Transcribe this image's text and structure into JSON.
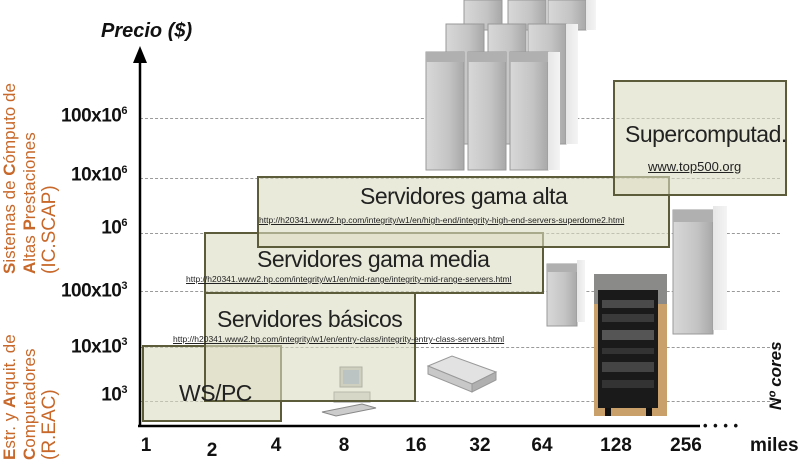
{
  "y_axis": {
    "title": "Precio ($)",
    "ticks": [
      {
        "base": "10",
        "exp": "3"
      },
      {
        "base": "10x10",
        "exp": "3"
      },
      {
        "base": "100x10",
        "exp": "3"
      },
      {
        "base": "10",
        "exp": "6"
      },
      {
        "base": "10x10",
        "exp": "6"
      },
      {
        "base": "100x10",
        "exp": "6"
      }
    ]
  },
  "x_axis": {
    "title": "Nº cores",
    "ticks": [
      "1",
      "2",
      "4",
      "8",
      "16",
      "32",
      "64",
      "128",
      "256"
    ],
    "continuation": "• • • •",
    "end_label": "miles"
  },
  "side_labels": {
    "top": {
      "line1": [
        {
          "t": "S",
          "cap": true
        },
        {
          "t": "istemas de ",
          "cap": false
        },
        {
          "t": "C",
          "cap": true
        },
        {
          "t": "ómputo de",
          "cap": false
        }
      ],
      "line2": [
        {
          "t": "A",
          "cap": true
        },
        {
          "t": "ltas ",
          "cap": false
        },
        {
          "t": "P",
          "cap": true
        },
        {
          "t": "restaciones",
          "cap": false
        }
      ],
      "line3": "(IC.SCAP)"
    },
    "bottom": {
      "line1": [
        {
          "t": "E",
          "cap": true
        },
        {
          "t": "str. y ",
          "cap": false
        },
        {
          "t": "A",
          "cap": true
        },
        {
          "t": "rquit. de",
          "cap": false
        }
      ],
      "line2": [
        {
          "t": "C",
          "cap": true
        },
        {
          "t": "omputadores",
          "cap": false
        }
      ],
      "line3": "(R.EAC)"
    }
  },
  "categories": {
    "ws_pc": {
      "title": "WS/PC"
    },
    "basicos": {
      "title": "Servidores básicos",
      "url": "http://h20341.www2.hp.com/integrity/w1/en/entry-class/integrity-entry-class-servers.html"
    },
    "media": {
      "title": "Servidores gama media",
      "url": "http://h20341.www2.hp.com/integrity/w1/en/mid-range/integrity-mid-range-servers.html"
    },
    "alta": {
      "title": "Servidores gama alta",
      "url": "http://h20341.www2.hp.com/integrity/w1/en/high-end/integrity-high-end-servers-superdome2.html"
    },
    "super": {
      "title": "Supercomputad.",
      "url": "www.top500.org"
    }
  },
  "colors": {
    "accent": "#c8682a",
    "box_border": "#5c5c3a",
    "box_fill": "#dcdcc3"
  }
}
